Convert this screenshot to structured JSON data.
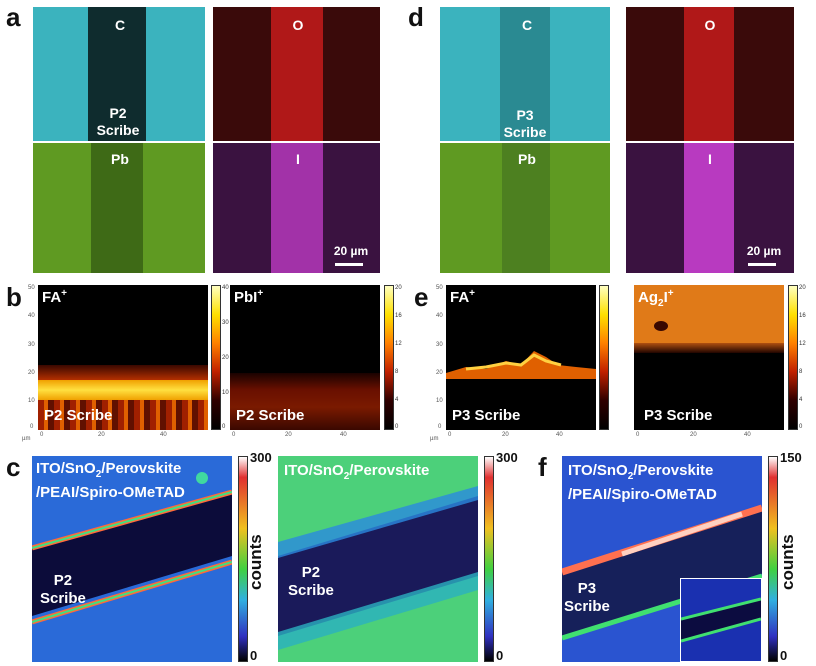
{
  "panels": {
    "a": {
      "letter": "a",
      "maps": [
        {
          "element": "C",
          "color": "#3fb8c4"
        },
        {
          "element": "O",
          "color": "#c42020"
        },
        {
          "element": "Pb",
          "color": "#7fbf2a"
        },
        {
          "element": "I",
          "color": "#c03ac4"
        }
      ],
      "scribe_label": "P2\nScribe",
      "scale_bar": "20 µm"
    },
    "d": {
      "letter": "d",
      "maps": [
        {
          "element": "C",
          "color": "#3fb8c4"
        },
        {
          "element": "O",
          "color": "#c42020"
        },
        {
          "element": "Pb",
          "color": "#7fbf2a"
        },
        {
          "element": "I",
          "color": "#c03ac4"
        }
      ],
      "scribe_label": "P3\nScribe",
      "scale_bar": "20 µm"
    },
    "b": {
      "letter": "b",
      "left": {
        "ion": "FA",
        "ion_sup": "+",
        "scribe": "P2 Scribe",
        "cbar_ticks": [
          "40",
          "30",
          "20",
          "10",
          "0"
        ]
      },
      "right": {
        "ion": "PbI",
        "ion_sup": "+",
        "scribe": "P2 Scribe",
        "cbar_ticks": [
          "20",
          "16",
          "12",
          "8",
          "4",
          "0"
        ]
      },
      "y_ticks": [
        "50",
        "40",
        "30",
        "20",
        "10",
        "0"
      ],
      "x_ticks": [
        "0",
        "20",
        "40"
      ],
      "unit": "µm"
    },
    "e": {
      "letter": "e",
      "left": {
        "ion": "FA",
        "ion_sup": "+",
        "scribe": "P3 Scribe"
      },
      "right": {
        "ion": "Ag",
        "ion_sub": "2",
        "ion_tail": "I",
        "ion_sup": "+",
        "scribe": "P3 Scribe",
        "cbar_ticks": [
          "20",
          "16",
          "12",
          "8",
          "4",
          "0"
        ]
      },
      "y_ticks": [
        "50",
        "40",
        "30",
        "20",
        "10",
        "0"
      ],
      "x_ticks": [
        "0",
        "20",
        "40"
      ],
      "unit": "µm"
    },
    "c": {
      "letter": "c",
      "left_stack": "ITO/SnO2/Perovskite\n/PEAI/Spiro-OMeTAD",
      "left_stack_parts": {
        "a": "ITO/SnO",
        "sub": "2",
        "b": "/Perovskite",
        "line2": "/PEAI/Spiro-OMeTAD"
      },
      "right_stack_parts": {
        "a": "ITO/SnO",
        "sub": "2",
        "b": "/Perovskite"
      },
      "scribe": "P2\nScribe",
      "cbar_max": "300",
      "cbar_min": "0",
      "cbar_label": "counts"
    },
    "f": {
      "letter": "f",
      "stack_parts": {
        "a": "ITO/SnO",
        "sub": "2",
        "b": "/Perovskite",
        "line2": "/PEAI/Spiro-OMeTAD"
      },
      "scribe": "P3\nScribe",
      "cbar_max": "150",
      "cbar_min": "0",
      "cbar_label": "counts"
    }
  }
}
